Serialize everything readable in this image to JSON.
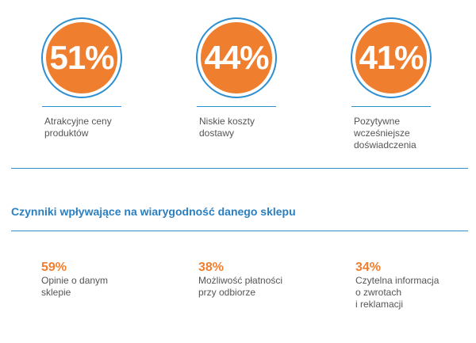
{
  "top_stats": [
    {
      "percent": "51%",
      "label_lines": [
        "Atrakcyjne ceny",
        "produktów"
      ]
    },
    {
      "percent": "44%",
      "label_lines": [
        "Niskie koszty",
        "dostawy"
      ]
    },
    {
      "percent": "41%",
      "label_lines": [
        "Pozytywne",
        "wcześniejsze",
        "doświadczenia"
      ]
    }
  ],
  "section": {
    "title": "Czynniki wpływające na wiarygodność danego sklepu",
    "stats": [
      {
        "percent": "59%",
        "label_lines": [
          "Opinie o danym",
          "sklepie"
        ]
      },
      {
        "percent": "38%",
        "label_lines": [
          "Możliwość płatności",
          "przy odbiorze"
        ]
      },
      {
        "percent": "34%",
        "label_lines": [
          "Czytelna informacja",
          "o zwrotach",
          "i reklamacji"
        ]
      }
    ]
  }
}
